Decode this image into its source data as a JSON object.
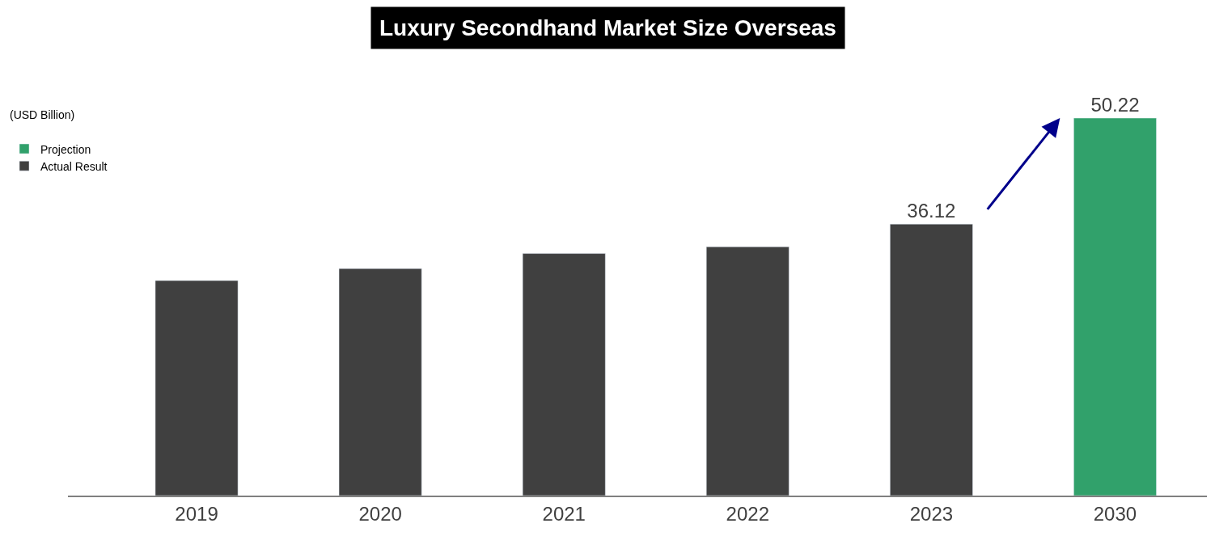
{
  "chart_data": {
    "type": "bar",
    "title": "Luxury Secondhand Market Size Overseas",
    "ylabel": "(USD Billion)",
    "categories": [
      "2019",
      "2020",
      "2021",
      "2022",
      "2023",
      "2030"
    ],
    "series": [
      {
        "name": "Projection",
        "color": "#31a16b",
        "values": [
          null,
          null,
          null,
          null,
          null,
          50.22
        ],
        "value_labels": [
          null,
          null,
          null,
          null,
          null,
          "50.22"
        ]
      },
      {
        "name": "Actual Result",
        "color": "#404040",
        "values": [
          28.6,
          30.2,
          32.2,
          33.1,
          36.12,
          null
        ],
        "value_labels": [
          null,
          null,
          null,
          null,
          "36.12",
          null
        ]
      }
    ],
    "legend": "top left"
  }
}
